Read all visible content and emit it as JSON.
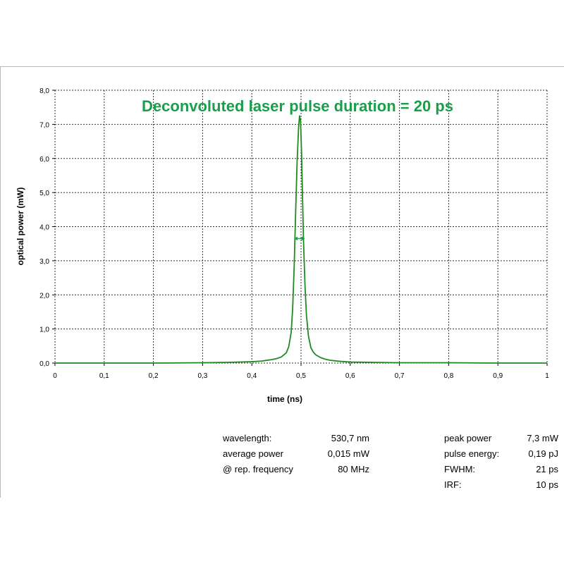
{
  "colors": {
    "accent": "#1a9e4a",
    "series": "#1f8a1f",
    "grid": "#333333",
    "frame": "#b8b8b8"
  },
  "chart_data": {
    "type": "line",
    "title": "Deconvoluted laser pulse duration = 20 ps",
    "xlabel": "time (ns)",
    "ylabel": "optical power (mW)",
    "xlim": [
      0,
      1
    ],
    "ylim": [
      0,
      8
    ],
    "x_ticks": [
      "0",
      "0,1",
      "0,2",
      "0,3",
      "0,4",
      "0,5",
      "0,6",
      "0,7",
      "0,8",
      "0,9",
      "1"
    ],
    "y_ticks": [
      "0,0",
      "1,0",
      "2,0",
      "3,0",
      "4,0",
      "5,0",
      "6,0",
      "7,0",
      "8,0"
    ],
    "grid": true,
    "fwhm_marker": {
      "x_start": 0.487,
      "x_end": 0.507,
      "y": 3.65
    },
    "series": [
      {
        "x": [
          0,
          0.1,
          0.2,
          0.3,
          0.35,
          0.4,
          0.42,
          0.44,
          0.45,
          0.46,
          0.47,
          0.475,
          0.48,
          0.483,
          0.486,
          0.489,
          0.492,
          0.495,
          0.497,
          0.499,
          0.501,
          0.503,
          0.505,
          0.508,
          0.511,
          0.515,
          0.52,
          0.525,
          0.53,
          0.54,
          0.55,
          0.56,
          0.58,
          0.6,
          0.65,
          0.7,
          0.8,
          0.9,
          1.0
        ],
        "y": [
          0,
          0,
          0,
          0.01,
          0.02,
          0.04,
          0.06,
          0.1,
          0.13,
          0.18,
          0.3,
          0.48,
          0.9,
          1.6,
          2.8,
          4.4,
          5.9,
          6.9,
          7.25,
          7.1,
          6.2,
          4.9,
          3.6,
          2.3,
          1.4,
          0.8,
          0.45,
          0.32,
          0.24,
          0.16,
          0.11,
          0.08,
          0.05,
          0.03,
          0.02,
          0.01,
          0.01,
          0,
          0
        ]
      }
    ]
  },
  "info_left": [
    {
      "label": "wavelength:",
      "value": "530,7 nm"
    },
    {
      "label": "average power",
      "value": "0,015 mW"
    },
    {
      "label": "@ rep. frequency",
      "value": "80 MHz"
    }
  ],
  "info_right": [
    {
      "label": "peak power",
      "value": "7,3 mW"
    },
    {
      "label": "pulse energy:",
      "value": "0,19 pJ"
    },
    {
      "label": "FWHM:",
      "value": "21 ps"
    },
    {
      "label": "IRF:",
      "value": "10 ps"
    }
  ]
}
